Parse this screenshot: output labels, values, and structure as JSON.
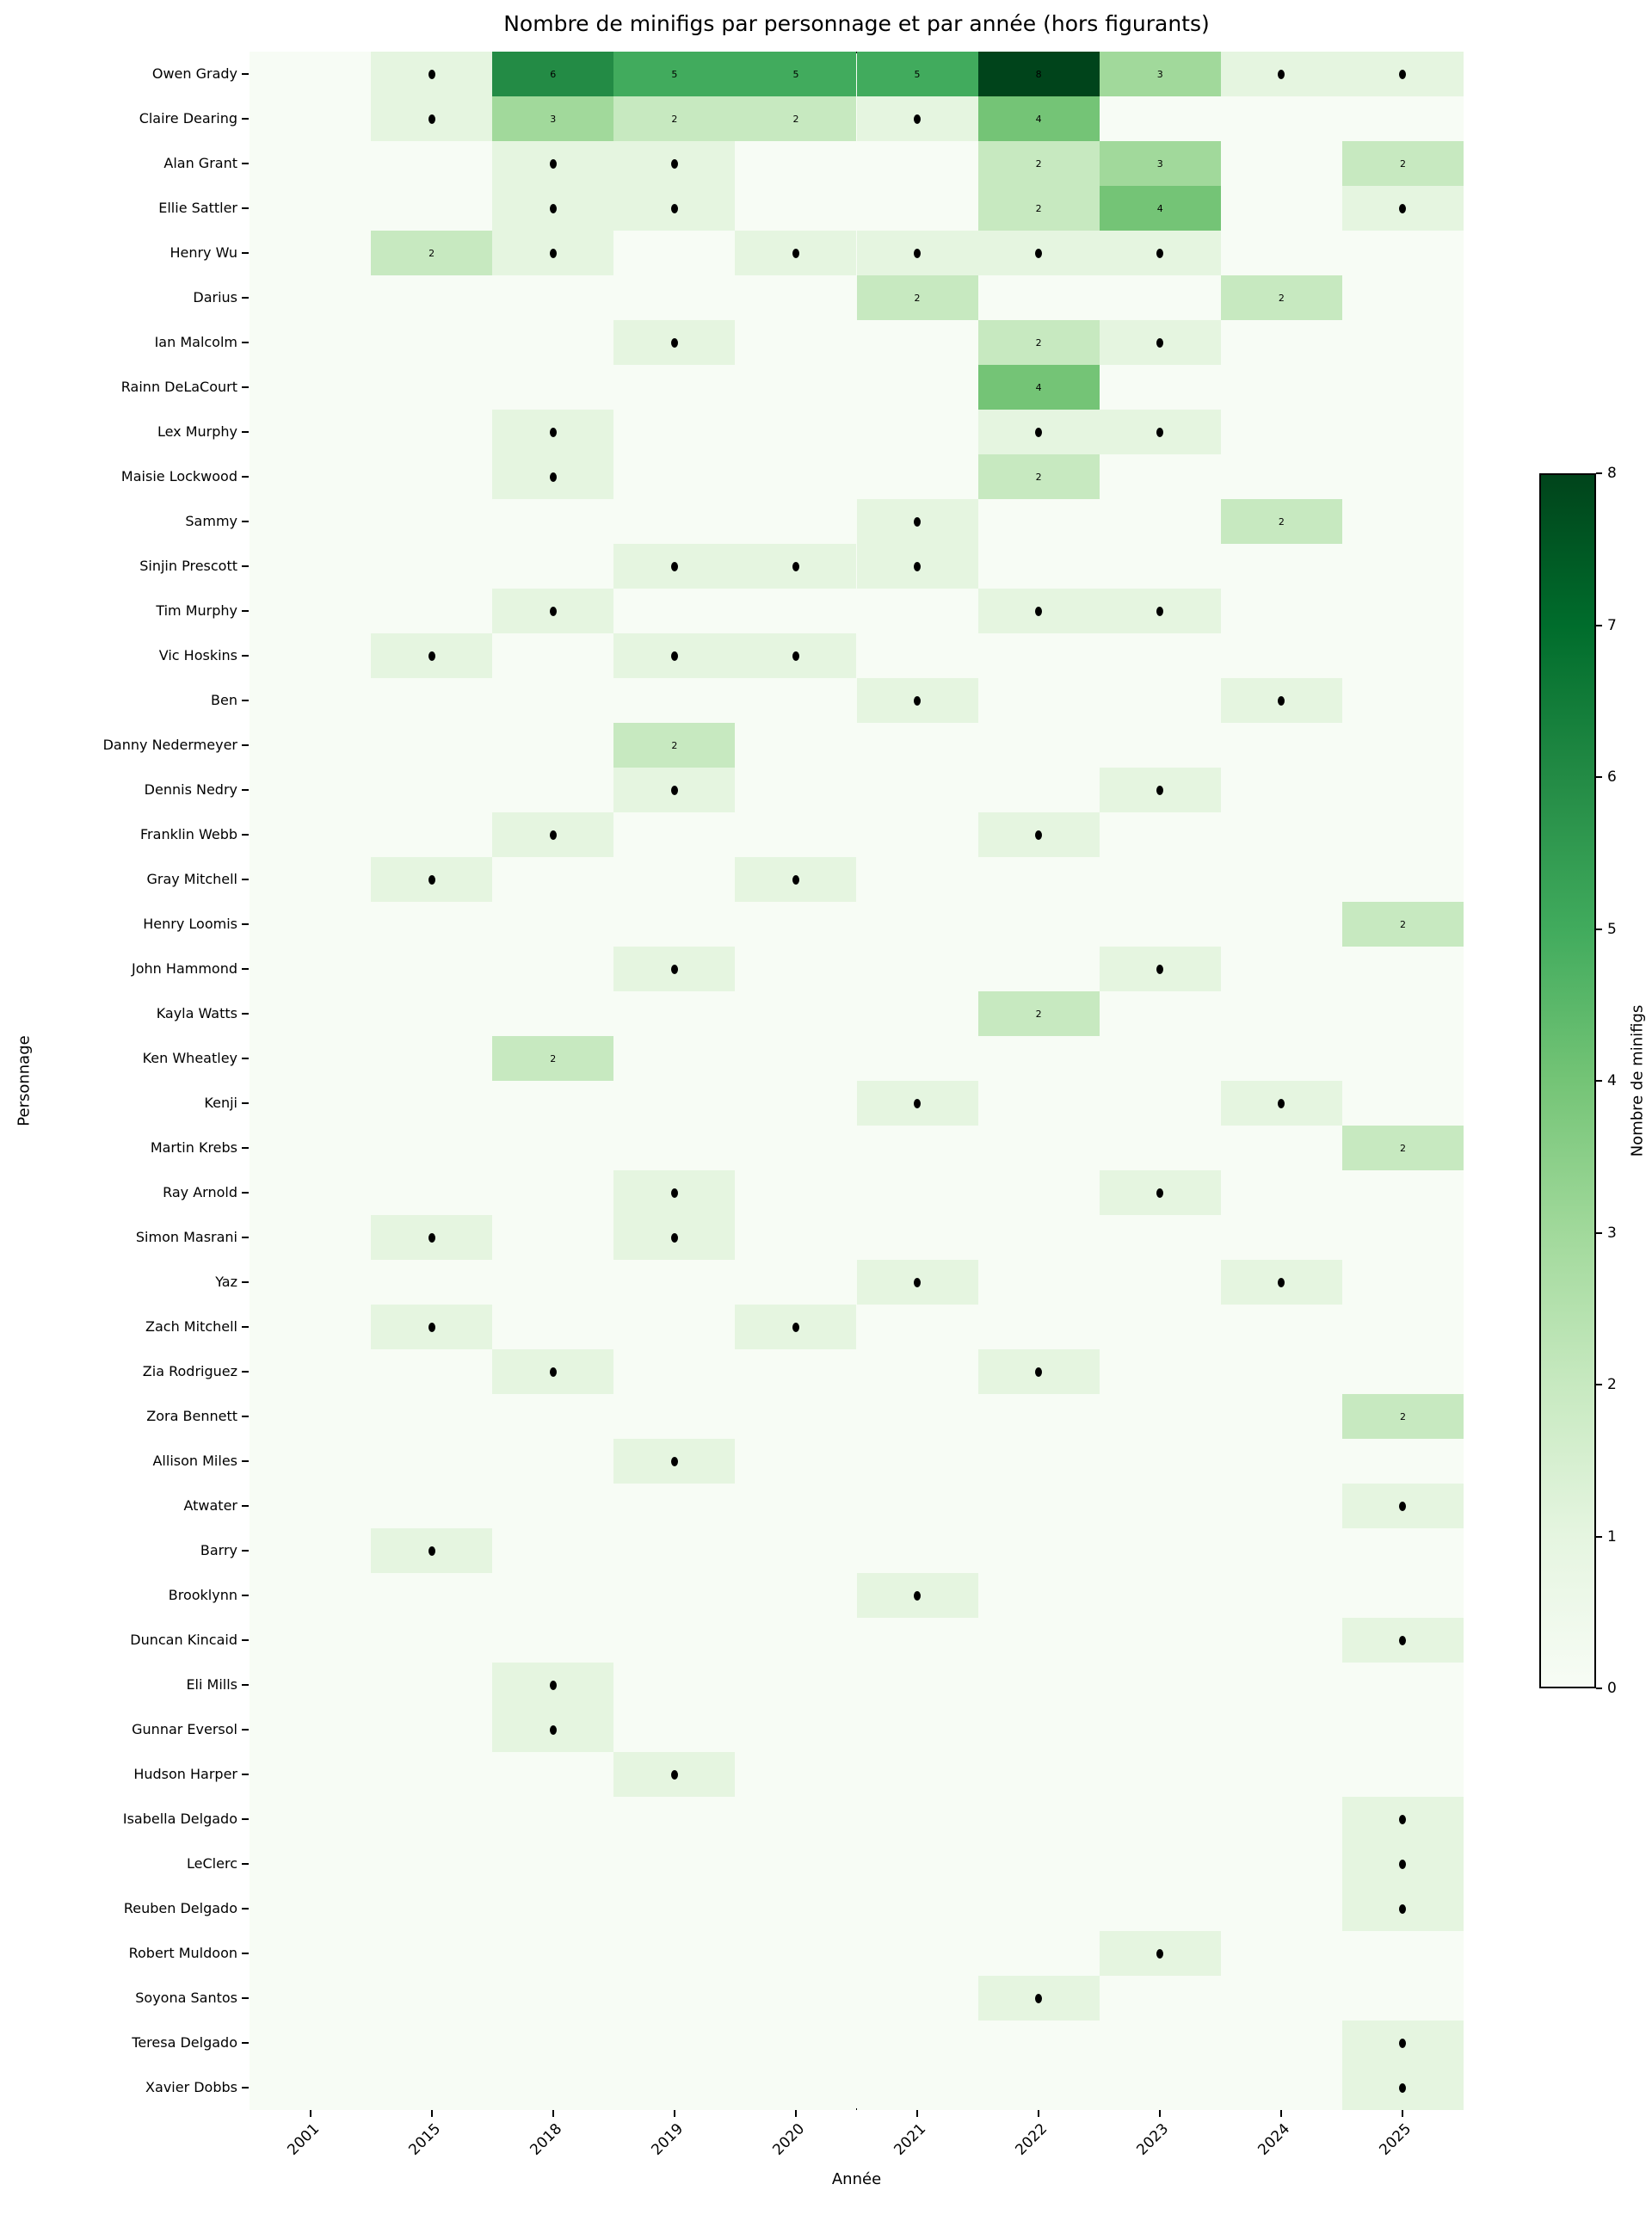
{
  "title": "Nombre de minifigs par personnage et par année (hors figurants)",
  "x_axis": {
    "label": "Année"
  },
  "y_axis": {
    "label": "Personnage"
  },
  "colorbar": {
    "label": "Nombre de minifigs",
    "tick_labels": [
      "0",
      "1",
      "2",
      "3",
      "4",
      "5",
      "6",
      "7",
      "8"
    ],
    "min": 0,
    "max": 8
  },
  "chart_data": {
    "type": "heatmap",
    "title": "Nombre de minifigs par personnage et par année (hors figurants)",
    "xlabel": "Année",
    "ylabel": "Personnage",
    "colormap_name": "Greens",
    "vmin": 0,
    "vmax": 8,
    "annotation_rule": "value 0 = empty cell, value 1 = black dot, value >= 2 = number printed in cell",
    "palette": {
      "0": "#f7fcf5",
      "1": "#e5f5e0",
      "2": "#c7e9c0",
      "3": "#a1d99b",
      "4": "#74c476",
      "5": "#41ab5d",
      "6": "#238b45",
      "7": "#006d2c",
      "8": "#00441b"
    },
    "x": [
      "2001",
      "2015",
      "2018",
      "2019",
      "2020",
      "2021",
      "2022",
      "2023",
      "2024",
      "2025"
    ],
    "y": [
      "Owen Grady",
      "Claire Dearing",
      "Alan Grant",
      "Ellie Sattler",
      "Henry Wu",
      "Darius",
      "Ian Malcolm",
      "Rainn DeLaCourt",
      "Lex Murphy",
      "Maisie Lockwood",
      "Sammy",
      "Sinjin Prescott",
      "Tim Murphy",
      "Vic Hoskins",
      "Ben",
      "Danny Nedermeyer",
      "Dennis Nedry",
      "Franklin Webb",
      "Gray Mitchell",
      "Henry Loomis",
      "John Hammond",
      "Kayla Watts",
      "Ken Wheatley",
      "Kenji",
      "Martin Krebs",
      "Ray Arnold",
      "Simon Masrani",
      "Yaz",
      "Zach Mitchell",
      "Zia Rodriguez",
      "Zora Bennett",
      "Allison Miles",
      "Atwater",
      "Barry",
      "Brooklynn",
      "Duncan Kincaid",
      "Eli Mills",
      "Gunnar Eversol",
      "Hudson Harper",
      "Isabella Delgado",
      "LeClerc",
      "Reuben Delgado",
      "Robert Muldoon",
      "Soyona Santos",
      "Teresa Delgado",
      "Xavier Dobbs"
    ],
    "values": [
      [
        0,
        1,
        6,
        5,
        5,
        5,
        8,
        3,
        1,
        1
      ],
      [
        0,
        1,
        3,
        2,
        2,
        1,
        4,
        0,
        0,
        0
      ],
      [
        0,
        0,
        1,
        1,
        0,
        0,
        2,
        3,
        0,
        2
      ],
      [
        0,
        0,
        1,
        1,
        0,
        0,
        2,
        4,
        0,
        1
      ],
      [
        0,
        2,
        1,
        0,
        1,
        1,
        1,
        1,
        0,
        0
      ],
      [
        0,
        0,
        0,
        0,
        0,
        2,
        0,
        0,
        2,
        0
      ],
      [
        0,
        0,
        0,
        1,
        0,
        0,
        2,
        1,
        0,
        0
      ],
      [
        0,
        0,
        0,
        0,
        0,
        0,
        4,
        0,
        0,
        0
      ],
      [
        0,
        0,
        1,
        0,
        0,
        0,
        1,
        1,
        0,
        0
      ],
      [
        0,
        0,
        1,
        0,
        0,
        0,
        2,
        0,
        0,
        0
      ],
      [
        0,
        0,
        0,
        0,
        0,
        1,
        0,
        0,
        2,
        0
      ],
      [
        0,
        0,
        0,
        1,
        1,
        1,
        0,
        0,
        0,
        0
      ],
      [
        0,
        0,
        1,
        0,
        0,
        0,
        1,
        1,
        0,
        0
      ],
      [
        0,
        1,
        0,
        1,
        1,
        0,
        0,
        0,
        0,
        0
      ],
      [
        0,
        0,
        0,
        0,
        0,
        1,
        0,
        0,
        1,
        0
      ],
      [
        0,
        0,
        0,
        2,
        0,
        0,
        0,
        0,
        0,
        0
      ],
      [
        0,
        0,
        0,
        1,
        0,
        0,
        0,
        1,
        0,
        0
      ],
      [
        0,
        0,
        1,
        0,
        0,
        0,
        1,
        0,
        0,
        0
      ],
      [
        0,
        1,
        0,
        0,
        1,
        0,
        0,
        0,
        0,
        0
      ],
      [
        0,
        0,
        0,
        0,
        0,
        0,
        0,
        0,
        0,
        2
      ],
      [
        0,
        0,
        0,
        1,
        0,
        0,
        0,
        1,
        0,
        0
      ],
      [
        0,
        0,
        0,
        0,
        0,
        0,
        2,
        0,
        0,
        0
      ],
      [
        0,
        0,
        2,
        0,
        0,
        0,
        0,
        0,
        0,
        0
      ],
      [
        0,
        0,
        0,
        0,
        0,
        1,
        0,
        0,
        1,
        0
      ],
      [
        0,
        0,
        0,
        0,
        0,
        0,
        0,
        0,
        0,
        2
      ],
      [
        0,
        0,
        0,
        1,
        0,
        0,
        0,
        1,
        0,
        0
      ],
      [
        0,
        1,
        0,
        1,
        0,
        0,
        0,
        0,
        0,
        0
      ],
      [
        0,
        0,
        0,
        0,
        0,
        1,
        0,
        0,
        1,
        0
      ],
      [
        0,
        1,
        0,
        0,
        1,
        0,
        0,
        0,
        0,
        0
      ],
      [
        0,
        0,
        1,
        0,
        0,
        0,
        1,
        0,
        0,
        0
      ],
      [
        0,
        0,
        0,
        0,
        0,
        0,
        0,
        0,
        0,
        2
      ],
      [
        0,
        0,
        0,
        1,
        0,
        0,
        0,
        0,
        0,
        0
      ],
      [
        0,
        0,
        0,
        0,
        0,
        0,
        0,
        0,
        0,
        1
      ],
      [
        0,
        1,
        0,
        0,
        0,
        0,
        0,
        0,
        0,
        0
      ],
      [
        0,
        0,
        0,
        0,
        0,
        1,
        0,
        0,
        0,
        0
      ],
      [
        0,
        0,
        0,
        0,
        0,
        0,
        0,
        0,
        0,
        1
      ],
      [
        0,
        0,
        1,
        0,
        0,
        0,
        0,
        0,
        0,
        0
      ],
      [
        0,
        0,
        1,
        0,
        0,
        0,
        0,
        0,
        0,
        0
      ],
      [
        0,
        0,
        0,
        1,
        0,
        0,
        0,
        0,
        0,
        0
      ],
      [
        0,
        0,
        0,
        0,
        0,
        0,
        0,
        0,
        0,
        1
      ],
      [
        0,
        0,
        0,
        0,
        0,
        0,
        0,
        0,
        0,
        1
      ],
      [
        0,
        0,
        0,
        0,
        0,
        0,
        0,
        0,
        0,
        1
      ],
      [
        0,
        0,
        0,
        0,
        0,
        0,
        0,
        1,
        0,
        0
      ],
      [
        0,
        0,
        0,
        0,
        0,
        0,
        1,
        0,
        0,
        0
      ],
      [
        0,
        0,
        0,
        0,
        0,
        0,
        0,
        0,
        0,
        1
      ],
      [
        0,
        0,
        0,
        0,
        0,
        0,
        0,
        0,
        0,
        1
      ]
    ]
  }
}
